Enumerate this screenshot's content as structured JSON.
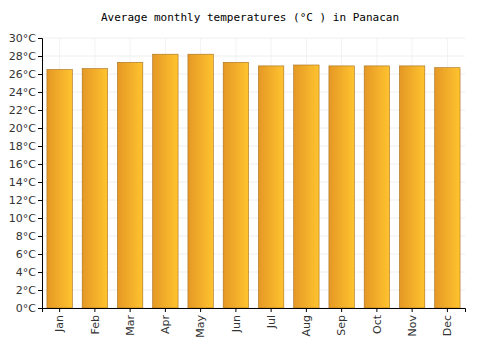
{
  "chart_data": {
    "type": "bar",
    "title": "Average monthly temperatures (°C ) in Panacan",
    "categories": [
      "Jan",
      "Feb",
      "Mar",
      "Apr",
      "May",
      "Jun",
      "Jul",
      "Aug",
      "Sep",
      "Oct",
      "Nov",
      "Dec"
    ],
    "values": [
      26.5,
      26.6,
      27.3,
      28.2,
      28.2,
      27.3,
      26.9,
      27.0,
      26.9,
      26.9,
      26.9,
      26.7
    ],
    "color": "#ffa929",
    "ylim": [
      0,
      30
    ],
    "yticks": [
      {
        "value": 0,
        "label": "0°C"
      },
      {
        "value": 2,
        "label": "2°C"
      },
      {
        "value": 4,
        "label": "4°C"
      },
      {
        "value": 6,
        "label": "6°C"
      },
      {
        "value": 8,
        "label": "8°C"
      },
      {
        "value": 10,
        "label": "10°C"
      },
      {
        "value": 12,
        "label": "12°C"
      },
      {
        "value": 14,
        "label": "14°C"
      },
      {
        "value": 16,
        "label": "16°C"
      },
      {
        "value": 18,
        "label": "18°C"
      },
      {
        "value": 20,
        "label": "20°C"
      },
      {
        "value": 22,
        "label": "22°C"
      },
      {
        "value": 24,
        "label": "24°C"
      },
      {
        "value": 26,
        "label": "26°C"
      },
      {
        "value": 28,
        "label": "28°C"
      },
      {
        "value": 30,
        "label": "30°C"
      }
    ],
    "grid": true
  }
}
